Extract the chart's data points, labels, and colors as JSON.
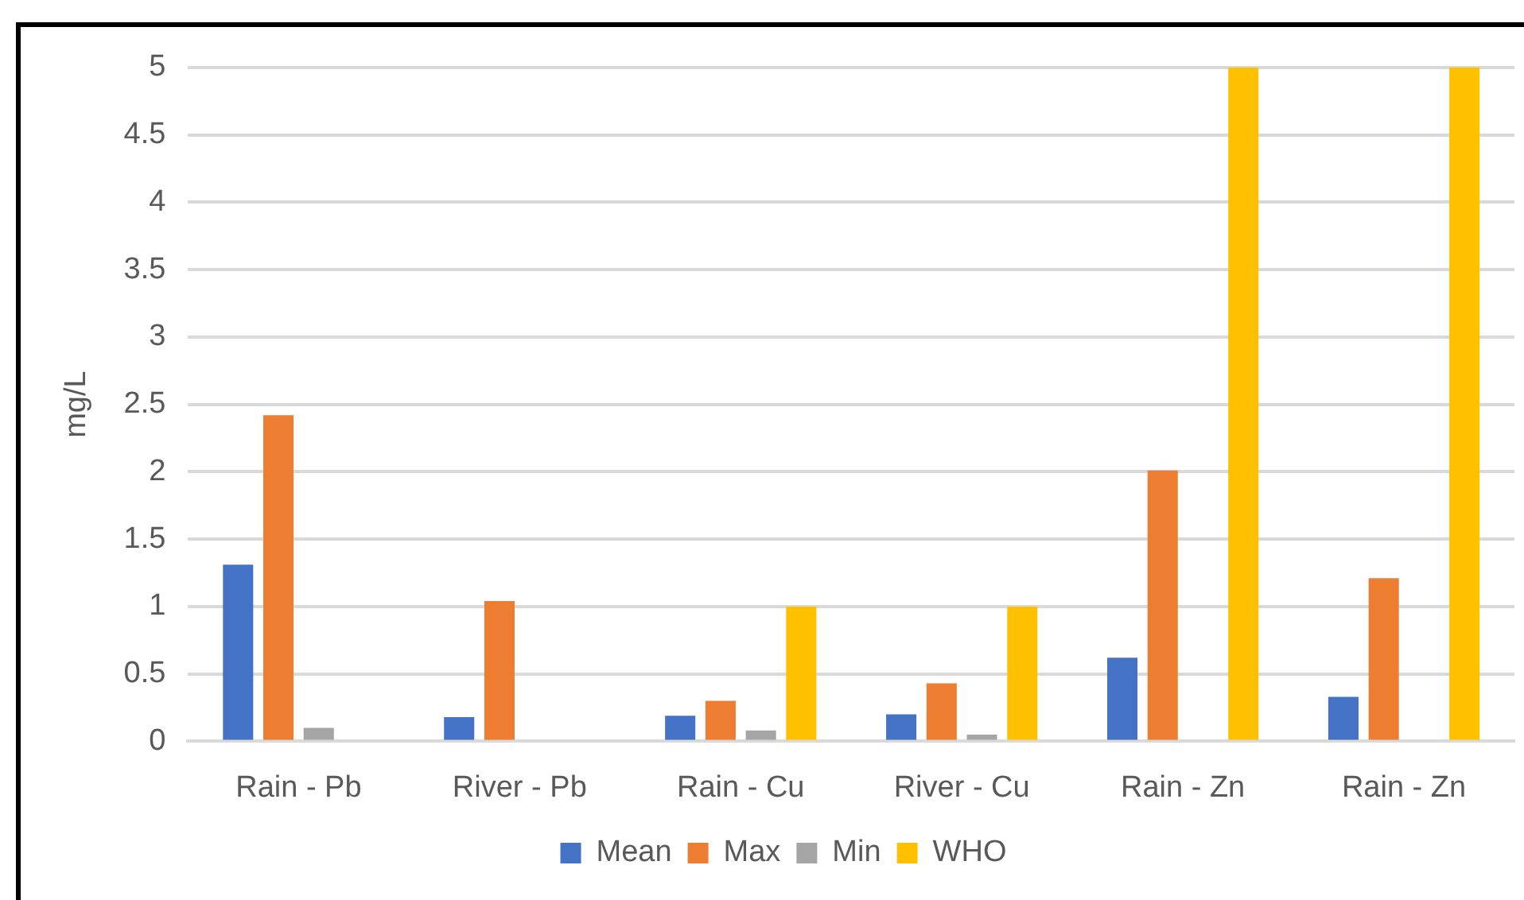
{
  "chart_data": {
    "type": "bar",
    "ylabel": "mg/L",
    "categories": [
      "Rain - Pb",
      "River - Pb",
      "Rain - Cu",
      "River - Cu",
      "Rain - Zn",
      "Rain - Zn"
    ],
    "series": [
      {
        "name": "Mean",
        "color": "#4472c4",
        "values": [
          1.31,
          0.18,
          0.19,
          0.2,
          0.62,
          0.33
        ]
      },
      {
        "name": "Max",
        "color": "#ed7d31",
        "values": [
          2.42,
          1.04,
          0.3,
          0.43,
          2.01,
          1.21
        ]
      },
      {
        "name": "Min",
        "color": "#a5a5a5",
        "values": [
          0.1,
          null,
          0.08,
          0.05,
          null,
          null
        ]
      },
      {
        "name": "WHO",
        "color": "#ffc000",
        "values": [
          null,
          null,
          1,
          1,
          5,
          5
        ]
      }
    ],
    "ylim": [
      0,
      5
    ],
    "yticks": [
      0,
      0.5,
      1,
      1.5,
      2,
      2.5,
      3,
      3.5,
      4,
      4.5,
      5
    ],
    "grid": "y",
    "legend": "bottom"
  }
}
